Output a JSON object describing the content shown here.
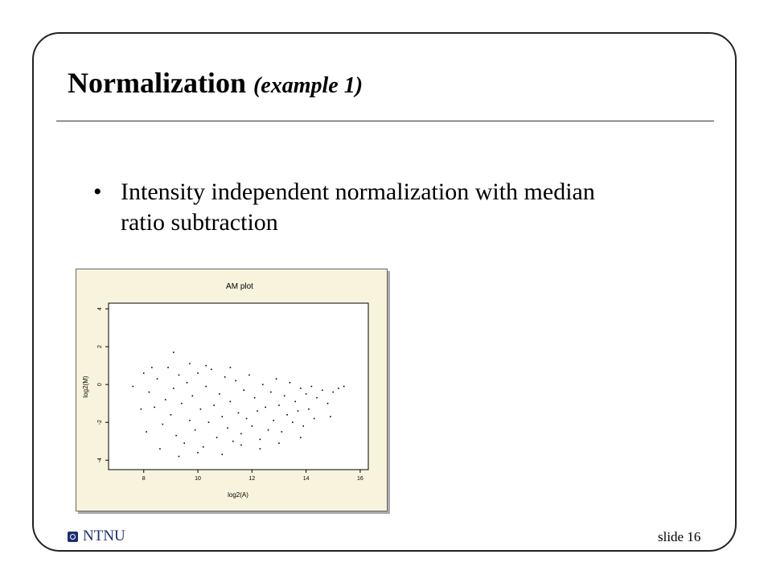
{
  "slide": {
    "title": "Normalization",
    "title_suffix": "(example 1)",
    "bullet": "Intensity independent normalization with median ratio subtraction",
    "footer_logo_text": "NTNU",
    "slide_number": "slide 16"
  },
  "chart_data": {
    "type": "scatter",
    "title": "AM plot",
    "xlabel": "log2(A)",
    "ylabel": "log2(M)",
    "xlim": [
      6.7,
      16.3
    ],
    "ylim": [
      -4.5,
      4.3
    ],
    "xticks": [
      8,
      10,
      12,
      14,
      16
    ],
    "yticks": [
      -4,
      -2,
      0,
      2,
      4
    ],
    "xtick_labels": [
      "8",
      "10",
      "12",
      "14",
      "16"
    ],
    "ytick_labels": [
      "-4",
      "-2",
      "0",
      "2",
      "4"
    ],
    "point_color": "#000000",
    "background_color": "#f7f3dc",
    "points": [
      {
        "x": 8.2,
        "y": -0.4
      },
      {
        "x": 8.4,
        "y": -1.2
      },
      {
        "x": 8.5,
        "y": 0.3
      },
      {
        "x": 8.7,
        "y": -2.1
      },
      {
        "x": 8.8,
        "y": -0.8
      },
      {
        "x": 8.9,
        "y": 0.9
      },
      {
        "x": 9.0,
        "y": -1.6
      },
      {
        "x": 9.1,
        "y": -0.2
      },
      {
        "x": 9.2,
        "y": -2.7
      },
      {
        "x": 9.3,
        "y": 0.5
      },
      {
        "x": 9.4,
        "y": -1.0
      },
      {
        "x": 9.5,
        "y": -3.1
      },
      {
        "x": 9.6,
        "y": 0.1
      },
      {
        "x": 9.7,
        "y": -1.9
      },
      {
        "x": 9.8,
        "y": -0.6
      },
      {
        "x": 9.9,
        "y": -2.4
      },
      {
        "x": 10.0,
        "y": 0.6
      },
      {
        "x": 10.1,
        "y": -1.3
      },
      {
        "x": 10.2,
        "y": -3.3
      },
      {
        "x": 10.3,
        "y": -0.1
      },
      {
        "x": 10.4,
        "y": -2.0
      },
      {
        "x": 10.5,
        "y": 0.8
      },
      {
        "x": 10.6,
        "y": -1.1
      },
      {
        "x": 10.7,
        "y": -2.8
      },
      {
        "x": 10.8,
        "y": -0.5
      },
      {
        "x": 10.9,
        "y": -1.7
      },
      {
        "x": 11.0,
        "y": 0.4
      },
      {
        "x": 11.1,
        "y": -2.3
      },
      {
        "x": 11.2,
        "y": -0.9
      },
      {
        "x": 11.3,
        "y": -3.0
      },
      {
        "x": 11.4,
        "y": 0.2
      },
      {
        "x": 11.5,
        "y": -1.5
      },
      {
        "x": 11.6,
        "y": -2.6
      },
      {
        "x": 11.7,
        "y": -0.3
      },
      {
        "x": 11.8,
        "y": -1.8
      },
      {
        "x": 11.9,
        "y": 0.5
      },
      {
        "x": 12.0,
        "y": -2.2
      },
      {
        "x": 12.1,
        "y": -0.7
      },
      {
        "x": 12.2,
        "y": -1.4
      },
      {
        "x": 12.3,
        "y": -2.9
      },
      {
        "x": 12.4,
        "y": 0.0
      },
      {
        "x": 12.5,
        "y": -1.2
      },
      {
        "x": 12.6,
        "y": -2.4
      },
      {
        "x": 12.7,
        "y": -0.4
      },
      {
        "x": 12.8,
        "y": -1.9
      },
      {
        "x": 12.9,
        "y": 0.3
      },
      {
        "x": 13.0,
        "y": -1.1
      },
      {
        "x": 13.1,
        "y": -2.5
      },
      {
        "x": 13.2,
        "y": -0.6
      },
      {
        "x": 13.3,
        "y": -1.6
      },
      {
        "x": 13.4,
        "y": 0.1
      },
      {
        "x": 13.5,
        "y": -2.0
      },
      {
        "x": 13.6,
        "y": -0.9
      },
      {
        "x": 13.7,
        "y": -1.4
      },
      {
        "x": 13.8,
        "y": -0.2
      },
      {
        "x": 13.9,
        "y": -2.2
      },
      {
        "x": 14.0,
        "y": -0.5
      },
      {
        "x": 14.1,
        "y": -1.3
      },
      {
        "x": 14.2,
        "y": -0.1
      },
      {
        "x": 14.3,
        "y": -1.8
      },
      {
        "x": 14.4,
        "y": -0.7
      },
      {
        "x": 14.6,
        "y": -0.3
      },
      {
        "x": 14.8,
        "y": -1.0
      },
      {
        "x": 15.0,
        "y": -0.4
      },
      {
        "x": 15.2,
        "y": -0.2
      },
      {
        "x": 15.4,
        "y": -0.1
      },
      {
        "x": 7.6,
        "y": -0.1
      },
      {
        "x": 8.3,
        "y": 0.9
      },
      {
        "x": 9.1,
        "y": 1.7
      },
      {
        "x": 9.7,
        "y": 1.1
      },
      {
        "x": 10.3,
        "y": 1.0
      },
      {
        "x": 11.2,
        "y": 0.9
      },
      {
        "x": 8.6,
        "y": -3.4
      },
      {
        "x": 9.3,
        "y": -3.8
      },
      {
        "x": 10.0,
        "y": -3.6
      },
      {
        "x": 10.9,
        "y": -3.7
      },
      {
        "x": 11.6,
        "y": -3.2
      },
      {
        "x": 12.3,
        "y": -3.4
      },
      {
        "x": 13.0,
        "y": -3.1
      },
      {
        "x": 13.8,
        "y": -2.8
      },
      {
        "x": 7.9,
        "y": -1.3
      },
      {
        "x": 8.1,
        "y": -2.5
      },
      {
        "x": 8.0,
        "y": 0.6
      },
      {
        "x": 14.9,
        "y": -1.7
      }
    ]
  }
}
